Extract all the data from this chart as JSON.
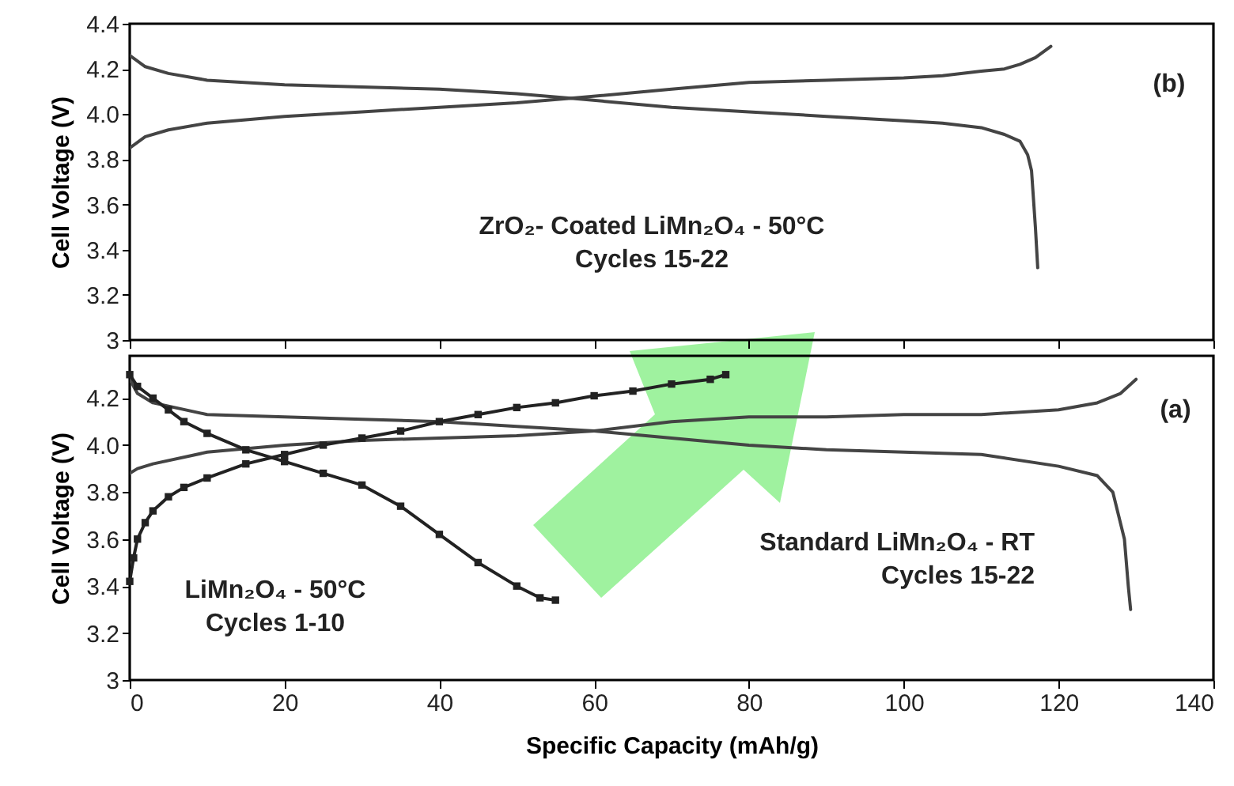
{
  "chart_data": [
    {
      "type": "line",
      "ylabel": "Cell Voltage (V)",
      "xlim": [
        0,
        140
      ],
      "xticks": [
        0,
        20,
        40,
        60,
        80,
        100,
        120,
        140
      ],
      "ylim": [
        3,
        4.4
      ],
      "yticks": [
        3,
        3.2,
        3.4,
        3.6,
        3.8,
        {
          "value": 4,
          "label": "4.0"
        },
        4.2,
        4.4
      ],
      "tick_labels": "y",
      "annotations": [
        "(b)",
        "ZrO₂- Coated LiMn₂O₄ - 50°C\nCycles 15-22"
      ],
      "series": [
        {
          "color": "#444444",
          "x": [
            0,
            2,
            5,
            10,
            20,
            30,
            40,
            50,
            57,
            70,
            80,
            90,
            100,
            105,
            110,
            113,
            115,
            117,
            119
          ],
          "values": [
            3.85,
            3.9,
            3.93,
            3.96,
            3.99,
            4.01,
            4.03,
            4.05,
            4.07,
            4.11,
            4.14,
            4.15,
            4.16,
            4.17,
            4.19,
            4.2,
            4.22,
            4.25,
            4.3
          ]
        },
        {
          "color": "#444444",
          "x": [
            0,
            2,
            5,
            10,
            20,
            30,
            40,
            50,
            57,
            70,
            80,
            90,
            100,
            105,
            110,
            113,
            115,
            116,
            116.5,
            117,
            117.3
          ],
          "values": [
            4.26,
            4.21,
            4.18,
            4.15,
            4.13,
            4.12,
            4.11,
            4.09,
            4.07,
            4.03,
            4.01,
            3.99,
            3.97,
            3.96,
            3.94,
            3.91,
            3.88,
            3.82,
            3.75,
            3.5,
            3.32
          ]
        }
      ]
    },
    {
      "type": "line",
      "xlabel": "Specific Capacity (mAh/g)",
      "ylabel": "Cell Voltage (V)",
      "xlim": [
        0,
        140
      ],
      "xticks": [
        0,
        20,
        40,
        60,
        80,
        100,
        120,
        140
      ],
      "ylim": [
        3,
        4.38
      ],
      "yticks": [
        3,
        3.2,
        3.4,
        3.6,
        3.8,
        {
          "value": 4,
          "label": "4.0"
        },
        4.2
      ],
      "annotations": [
        "(a)",
        "LiMn₂O₄ - 50°C\nCycles 1-10",
        "Standard LiMn₂O₄ - RT\nCycles 15-22"
      ],
      "series": [
        {
          "color": "#444444",
          "x": [
            0,
            1,
            3,
            10,
            20,
            30,
            40,
            50,
            60,
            70,
            80,
            90,
            100,
            110,
            120,
            125,
            128,
            130
          ],
          "values": [
            3.88,
            3.9,
            3.92,
            3.97,
            4,
            4.02,
            4.03,
            4.04,
            4.06,
            4.1,
            4.12,
            4.12,
            4.13,
            4.13,
            4.15,
            4.18,
            4.22,
            4.28
          ]
        },
        {
          "color": "#444444",
          "x": [
            0,
            1,
            3,
            10,
            20,
            30,
            40,
            50,
            60,
            70,
            80,
            90,
            100,
            110,
            120,
            125,
            127,
            128.5,
            129,
            129.3
          ],
          "values": [
            4.28,
            4.22,
            4.18,
            4.13,
            4.12,
            4.11,
            4.1,
            4.08,
            4.06,
            4.03,
            4,
            3.98,
            3.97,
            3.96,
            3.91,
            3.87,
            3.8,
            3.6,
            3.4,
            3.3
          ]
        },
        {
          "color": "#222222",
          "marker": "square",
          "x": [
            0,
            0.5,
            1,
            2,
            3,
            5,
            7,
            10,
            15,
            20,
            25,
            30,
            35,
            40,
            45,
            50,
            55,
            60,
            65,
            70,
            75,
            77
          ],
          "values": [
            3.42,
            3.52,
            3.6,
            3.67,
            3.72,
            3.78,
            3.82,
            3.86,
            3.92,
            3.96,
            4,
            4.03,
            4.06,
            4.1,
            4.13,
            4.16,
            4.18,
            4.21,
            4.23,
            4.26,
            4.28,
            4.3
          ]
        },
        {
          "color": "#222222",
          "marker": "square",
          "x": [
            0,
            1,
            3,
            5,
            7,
            10,
            15,
            20,
            25,
            30,
            35,
            40,
            45,
            50,
            53,
            55
          ],
          "values": [
            4.3,
            4.25,
            4.2,
            4.15,
            4.1,
            4.05,
            3.98,
            3.93,
            3.88,
            3.83,
            3.74,
            3.62,
            3.5,
            3.4,
            3.35,
            3.34
          ]
        }
      ]
    }
  ]
}
